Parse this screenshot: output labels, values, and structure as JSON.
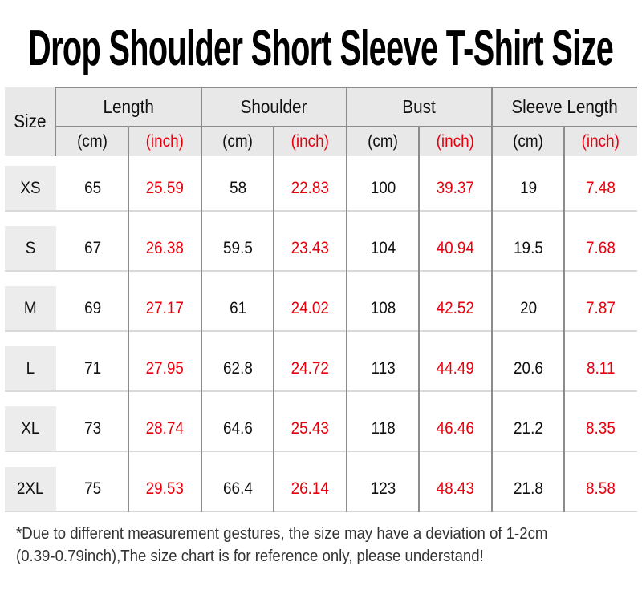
{
  "title": "Drop Shoulder Short Sleeve T-Shirt Size",
  "colors": {
    "accent_red": "#e8000d",
    "header_bg": "#e8e8e8",
    "size_cell_bg": "#ececec",
    "divider_dark": "#8c8c8c",
    "divider_light": "#d9d9d9"
  },
  "table": {
    "size_header": "Size",
    "groups": [
      "Length",
      "Shoulder",
      "Bust",
      "Sleeve Length"
    ],
    "unit_cm": "(cm)",
    "unit_inch": "(inch)",
    "rows": [
      {
        "size": "XS",
        "values": [
          "65",
          "25.59",
          "58",
          "22.83",
          "100",
          "39.37",
          "19",
          "7.48"
        ]
      },
      {
        "size": "S",
        "values": [
          "67",
          "26.38",
          "59.5",
          "23.43",
          "104",
          "40.94",
          "19.5",
          "7.68"
        ]
      },
      {
        "size": "M",
        "values": [
          "69",
          "27.17",
          "61",
          "24.02",
          "108",
          "42.52",
          "20",
          "7.87"
        ]
      },
      {
        "size": "L",
        "values": [
          "71",
          "27.95",
          "62.8",
          "24.72",
          "113",
          "44.49",
          "20.6",
          "8.11"
        ]
      },
      {
        "size": "XL",
        "values": [
          "73",
          "28.74",
          "64.6",
          "25.43",
          "118",
          "46.46",
          "21.2",
          "8.35"
        ]
      },
      {
        "size": "2XL",
        "values": [
          "75",
          "29.53",
          "66.4",
          "26.14",
          "123",
          "48.43",
          "21.8",
          "8.58"
        ]
      }
    ]
  },
  "footnote": {
    "line1": "*Due to different measurement gestures, the size may have a deviation of 1-2cm",
    "line2": "(0.39-0.79inch),The size chart is for reference only, please understand!"
  },
  "chart_data": {
    "type": "table",
    "title": "Drop Shoulder Short Sleeve T-Shirt Size",
    "columns": [
      "Size",
      "Length (cm)",
      "Length (inch)",
      "Shoulder (cm)",
      "Shoulder (inch)",
      "Bust (cm)",
      "Bust (inch)",
      "Sleeve Length (cm)",
      "Sleeve Length (inch)"
    ],
    "rows": [
      [
        "XS",
        65,
        25.59,
        58,
        22.83,
        100,
        39.37,
        19,
        7.48
      ],
      [
        "S",
        67,
        26.38,
        59.5,
        23.43,
        104,
        40.94,
        19.5,
        7.68
      ],
      [
        "M",
        69,
        27.17,
        61,
        24.02,
        108,
        42.52,
        20,
        7.87
      ],
      [
        "L",
        71,
        27.95,
        62.8,
        24.72,
        113,
        44.49,
        20.6,
        8.11
      ],
      [
        "XL",
        73,
        28.74,
        64.6,
        25.43,
        118,
        46.46,
        21.2,
        8.35
      ],
      [
        "2XL",
        75,
        29.53,
        66.4,
        26.14,
        123,
        48.43,
        21.8,
        8.58
      ]
    ],
    "note": "*Due to different measurement gestures, the size may have a deviation of 1-2cm (0.39-0.79inch),The size chart is for reference only, please understand!",
    "unit_color_cm": "#111111",
    "unit_color_inch": "#e8000d"
  }
}
